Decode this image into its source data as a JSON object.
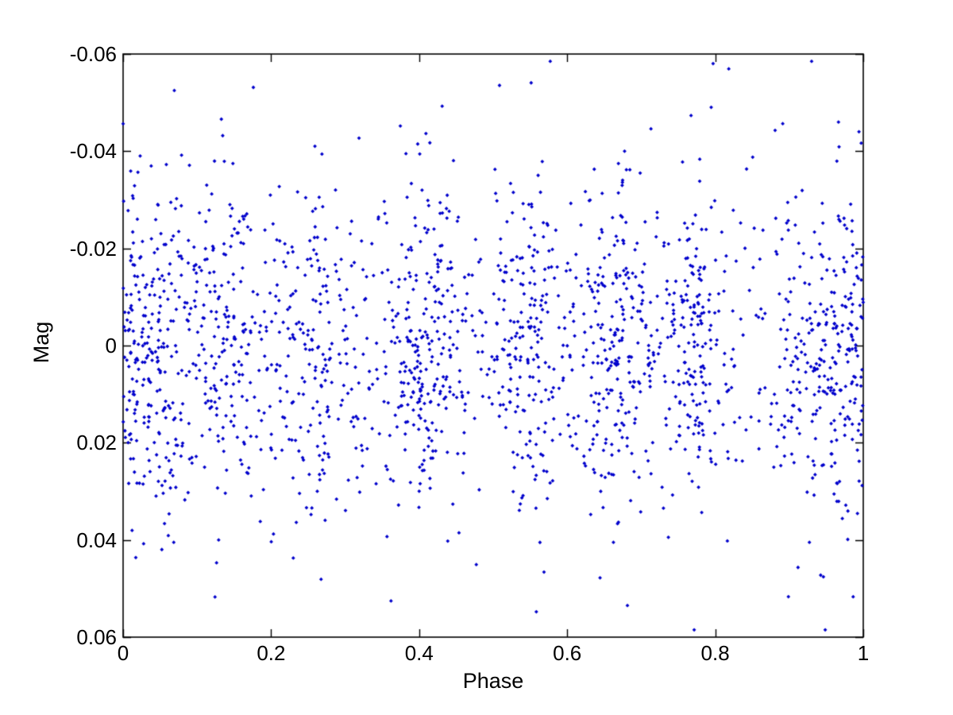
{
  "figure": {
    "background_color": "#ffffff",
    "axis_color": "#000000",
    "title": ""
  },
  "chart_data": {
    "type": "scatter",
    "title": "",
    "xlabel": "Phase",
    "ylabel": "Mag",
    "xlim": [
      0,
      1
    ],
    "ylim_top_to_bottom": [
      -0.06,
      0.06
    ],
    "y_axis_inverted": true,
    "grid": false,
    "legend": null,
    "x_ticks": {
      "values": [
        0,
        0.2,
        0.4,
        0.6,
        0.8,
        1
      ],
      "labels": [
        "0",
        "0.2",
        "0.4",
        "0.6",
        "0.8",
        "1"
      ]
    },
    "y_ticks": {
      "values": [
        -0.06,
        -0.04,
        -0.02,
        0,
        0.02,
        0.04,
        0.06
      ],
      "labels": [
        "-0.06",
        "-0.04",
        "-0.02",
        "0",
        "0.02",
        "0.04",
        "0.06"
      ]
    },
    "marker": {
      "shape": "diamond-dot",
      "color": "#0000CC",
      "radius_px": 2.4
    },
    "n_points": 2000,
    "points_generator": {
      "seed": 42,
      "uniform_weight": 3.0,
      "phase_clusters": [
        {
          "center": 0.05,
          "weight": 1.0,
          "sigma": 0.03
        },
        {
          "center": 0.14,
          "weight": 0.9,
          "sigma": 0.03
        },
        {
          "center": 0.26,
          "weight": 1.0,
          "sigma": 0.03
        },
        {
          "center": 0.41,
          "weight": 1.3,
          "sigma": 0.035
        },
        {
          "center": 0.55,
          "weight": 0.8,
          "sigma": 0.025
        },
        {
          "center": 0.67,
          "weight": 1.2,
          "sigma": 0.03
        },
        {
          "center": 0.77,
          "weight": 0.9,
          "sigma": 0.02
        },
        {
          "center": 0.95,
          "weight": 1.4,
          "sigma": 0.045
        },
        {
          "center": 0.0,
          "weight": 0.5,
          "sigma": 0.02
        }
      ],
      "mag_mean": 0.0005,
      "mag_sigma": 0.018,
      "tail_fraction": 0.05,
      "tail_scale": 1.45,
      "mag_clip": [
        -0.0585,
        0.0585
      ]
    }
  }
}
